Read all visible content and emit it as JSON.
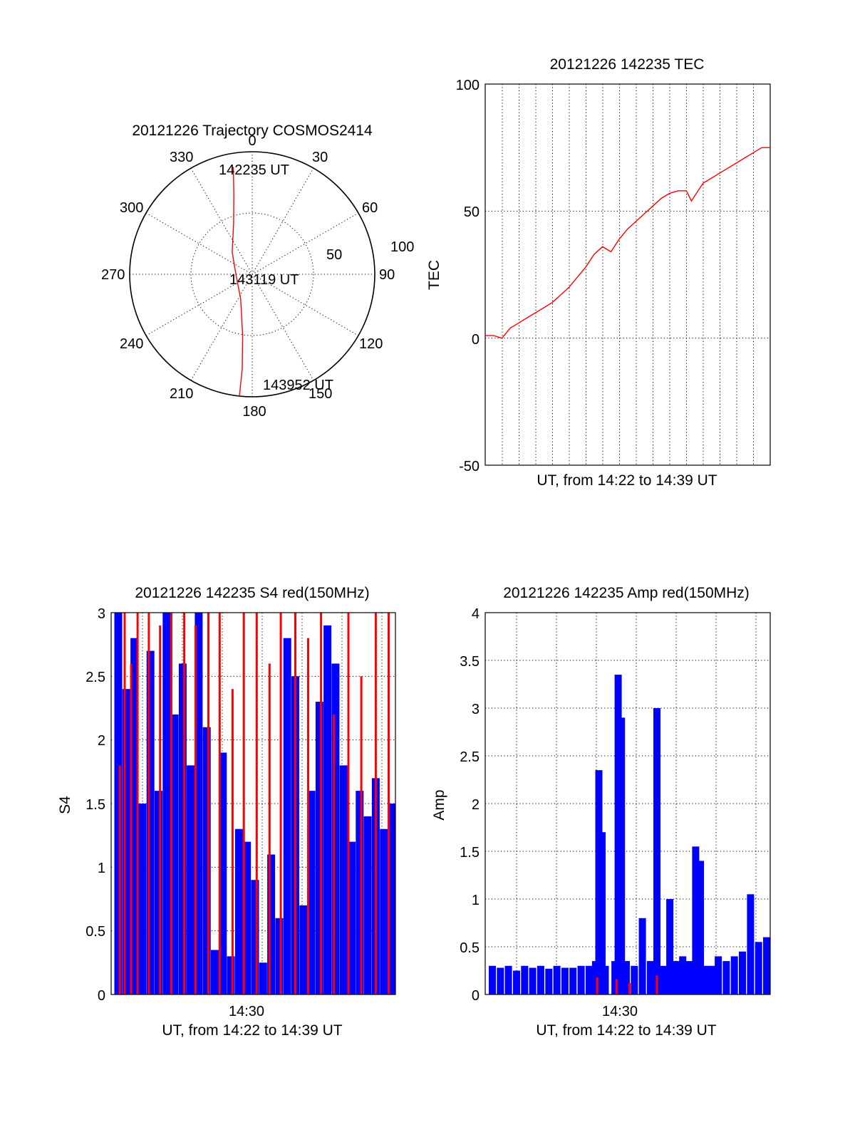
{
  "chart_data": [
    {
      "type": "polar",
      "title": "20121226 Trajectory COSMOS2414",
      "azimuth_labels": [
        "0",
        "30",
        "60",
        "90",
        "120",
        "150",
        "180",
        "210",
        "240",
        "270",
        "300",
        "330"
      ],
      "radius_labels": [
        "50",
        "100"
      ],
      "series": [
        {
          "color": "#ff0000",
          "points": [
            {
              "azimuth": 350,
              "zenith": 80
            },
            {
              "azimuth": 347,
              "zenith": 60
            },
            {
              "azimuth": 340,
              "zenith": 40
            },
            {
              "azimuth": 318,
              "zenith": 22
            },
            {
              "azimuth": 270,
              "zenith": 12
            },
            {
              "azimuth": 205,
              "zenith": 20
            },
            {
              "azimuth": 189,
              "zenith": 45
            },
            {
              "azimuth": 186,
              "zenith": 70
            },
            {
              "azimuth": 186,
              "zenith": 90
            }
          ]
        }
      ],
      "annotations": [
        "142235 UT",
        "143119 UT",
        "143952 UT"
      ]
    },
    {
      "type": "line",
      "title": "20121226 142235 TEC",
      "xlabel": "UT, from 14:22 to 14:39 UT",
      "ylabel": "TEC",
      "ylim": [
        -50,
        100
      ],
      "yticks": [
        "-50",
        "0",
        "50",
        "100"
      ],
      "grid": true,
      "series": [
        {
          "color": "#ff0000",
          "points": [
            [
              0.0,
              1
            ],
            [
              0.5,
              1
            ],
            [
              1.0,
              0
            ],
            [
              1.5,
              4
            ],
            [
              2.0,
              6
            ],
            [
              2.5,
              8
            ],
            [
              3.0,
              10
            ],
            [
              3.5,
              12
            ],
            [
              4.0,
              14
            ],
            [
              4.5,
              17
            ],
            [
              5.0,
              20
            ],
            [
              5.5,
              24
            ],
            [
              6.0,
              28
            ],
            [
              6.5,
              33
            ],
            [
              7.0,
              36
            ],
            [
              7.5,
              34
            ],
            [
              8.0,
              39
            ],
            [
              8.5,
              43
            ],
            [
              9.0,
              46
            ],
            [
              9.5,
              49
            ],
            [
              10.0,
              52
            ],
            [
              10.5,
              55
            ],
            [
              11.0,
              57
            ],
            [
              11.5,
              58
            ],
            [
              12.0,
              58
            ],
            [
              12.3,
              54
            ],
            [
              12.7,
              58
            ],
            [
              13.0,
              61
            ],
            [
              13.5,
              63
            ],
            [
              14.0,
              65
            ],
            [
              14.5,
              67
            ],
            [
              15.0,
              69
            ],
            [
              15.5,
              71
            ],
            [
              16.0,
              73
            ],
            [
              16.5,
              75
            ],
            [
              17.0,
              75
            ]
          ]
        }
      ]
    },
    {
      "type": "bar",
      "title": "20121226 142235 S4 red(150MHz)",
      "xlabel": "UT, from 14:22 to 14:39 UT",
      "ylabel": "S4",
      "xticks": [
        "14:30"
      ],
      "yticks": [
        "0",
        "0.5",
        "1",
        "1.5",
        "2",
        "2.5",
        "3"
      ],
      "ylim": [
        0,
        3
      ],
      "series": [
        {
          "color": "#0000ff",
          "points": [
            [
              0.0,
              3.0
            ],
            [
              0.5,
              2.4
            ],
            [
              1.0,
              2.8
            ],
            [
              1.5,
              1.5
            ],
            [
              2.0,
              2.7
            ],
            [
              2.5,
              1.6
            ],
            [
              3.0,
              3.0
            ],
            [
              3.5,
              2.2
            ],
            [
              4.0,
              2.6
            ],
            [
              4.5,
              1.8
            ],
            [
              5.0,
              3.0
            ],
            [
              5.5,
              2.1
            ],
            [
              6.0,
              0.35
            ],
            [
              6.5,
              1.9
            ],
            [
              7.0,
              0.3
            ],
            [
              7.5,
              1.3
            ],
            [
              8.0,
              1.2
            ],
            [
              8.5,
              0.9
            ],
            [
              9.0,
              0.25
            ],
            [
              9.5,
              1.1
            ],
            [
              10.0,
              0.6
            ],
            [
              10.5,
              2.8
            ],
            [
              11.0,
              2.5
            ],
            [
              11.5,
              0.7
            ],
            [
              12.0,
              1.6
            ],
            [
              12.5,
              2.3
            ],
            [
              13.0,
              2.9
            ],
            [
              13.5,
              2.6
            ],
            [
              14.0,
              1.8
            ],
            [
              14.5,
              1.2
            ],
            [
              15.0,
              1.6
            ],
            [
              15.5,
              1.4
            ],
            [
              16.0,
              1.7
            ],
            [
              16.5,
              1.3
            ],
            [
              17.0,
              1.5
            ]
          ]
        },
        {
          "color": "#ff0000",
          "points": [
            [
              0.1,
              1.8
            ],
            [
              0.4,
              3.0
            ],
            [
              0.8,
              2.6
            ],
            [
              1.2,
              3.0
            ],
            [
              1.9,
              3.0
            ],
            [
              2.6,
              2.9
            ],
            [
              3.3,
              3.0
            ],
            [
              4.1,
              3.0
            ],
            [
              4.8,
              2.9
            ],
            [
              5.6,
              3.0
            ],
            [
              6.3,
              3.0
            ],
            [
              7.1,
              2.4
            ],
            [
              7.8,
              3.0
            ],
            [
              8.6,
              3.0
            ],
            [
              9.4,
              2.6
            ],
            [
              10.1,
              3.0
            ],
            [
              11.0,
              3.0
            ],
            [
              11.8,
              2.8
            ],
            [
              12.6,
              3.0
            ],
            [
              13.4,
              2.2
            ],
            [
              14.3,
              3.0
            ],
            [
              15.1,
              2.5
            ],
            [
              16.0,
              3.0
            ],
            [
              16.8,
              3.0
            ]
          ]
        }
      ]
    },
    {
      "type": "bar",
      "title": "20121226 142235 Amp red(150MHz)",
      "xlabel": "UT, from 14:22 to 14:39 UT",
      "ylabel": "Amp",
      "xticks": [
        "14:30"
      ],
      "yticks": [
        "0",
        "0.5",
        "1",
        "1.5",
        "2",
        "2.5",
        "3",
        "3.5",
        "4"
      ],
      "ylim": [
        0,
        4
      ],
      "series": [
        {
          "color": "#0000ff",
          "points": [
            [
              0.0,
              0.3
            ],
            [
              0.5,
              0.28
            ],
            [
              1.0,
              0.3
            ],
            [
              1.5,
              0.25
            ],
            [
              2.0,
              0.3
            ],
            [
              2.5,
              0.28
            ],
            [
              3.0,
              0.3
            ],
            [
              3.5,
              0.27
            ],
            [
              4.0,
              0.3
            ],
            [
              4.5,
              0.28
            ],
            [
              5.0,
              0.28
            ],
            [
              5.5,
              0.3
            ],
            [
              6.0,
              0.3
            ],
            [
              6.4,
              0.35
            ],
            [
              6.6,
              2.35
            ],
            [
              6.8,
              1.7
            ],
            [
              7.0,
              0.3
            ],
            [
              7.6,
              0.35
            ],
            [
              7.8,
              3.35
            ],
            [
              8.0,
              2.9
            ],
            [
              8.3,
              0.35
            ],
            [
              8.8,
              0.3
            ],
            [
              9.3,
              0.8
            ],
            [
              9.8,
              0.35
            ],
            [
              10.2,
              3.0
            ],
            [
              10.6,
              0.3
            ],
            [
              11.0,
              1.0
            ],
            [
              11.4,
              0.35
            ],
            [
              11.8,
              0.4
            ],
            [
              12.2,
              0.35
            ],
            [
              12.6,
              1.55
            ],
            [
              12.9,
              1.4
            ],
            [
              13.2,
              0.3
            ],
            [
              13.6,
              0.3
            ],
            [
              14.0,
              0.4
            ],
            [
              14.5,
              0.35
            ],
            [
              15.0,
              0.4
            ],
            [
              15.5,
              0.45
            ],
            [
              16.0,
              1.05
            ],
            [
              16.5,
              0.55
            ],
            [
              17.0,
              0.6
            ]
          ]
        },
        {
          "color": "#ff0000",
          "points": [
            [
              6.5,
              0.18
            ],
            [
              7.7,
              0.16
            ],
            [
              8.5,
              0.12
            ],
            [
              10.2,
              0.2
            ]
          ]
        }
      ]
    }
  ]
}
